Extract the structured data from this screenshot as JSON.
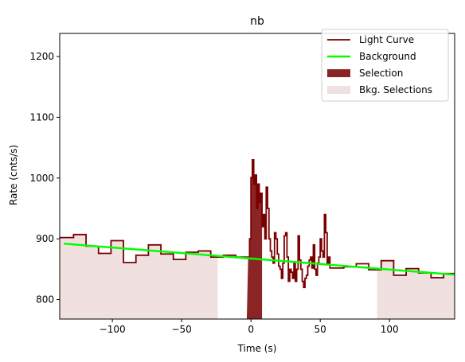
{
  "chart_data": {
    "type": "line",
    "title": "nb",
    "xlabel": "Time (s)",
    "ylabel": "Rate (cnts/s)",
    "xlim": [
      -138,
      147
    ],
    "ylim": [
      768,
      1238
    ],
    "xticks": [
      -100,
      -50,
      0,
      50,
      100
    ],
    "yticks": [
      800,
      900,
      1000,
      1100,
      1200
    ],
    "grid": false,
    "legend_position": "top-right",
    "colors": {
      "light_curve": "#7b0000",
      "background": "#00ff00",
      "selection": "#8b2525",
      "bkg_selection": "#f0e0e0"
    },
    "legend": [
      {
        "label": "Light Curve",
        "kind": "line",
        "color": "#7b0000"
      },
      {
        "label": "Background",
        "kind": "line",
        "color": "#00ff00"
      },
      {
        "label": "Selection",
        "kind": "patch",
        "color": "#8b2525"
      },
      {
        "label": "Bkg. Selections",
        "kind": "patch",
        "color": "#f0e0e0"
      }
    ],
    "background_fit": {
      "x": [
        -135,
        147
      ],
      "y": [
        892,
        841
      ]
    },
    "bkg_selections": [
      [
        -138,
        -24
      ],
      [
        91,
        147
      ]
    ],
    "selection": [
      -3,
      8
    ],
    "light_curve_coarse": {
      "edges": [
        -138,
        -128,
        -119,
        -110,
        -101,
        -92,
        -83,
        -74,
        -65,
        -56,
        -47,
        -38,
        -29,
        -20,
        -11,
        -2
      ],
      "values": [
        902,
        907,
        888,
        876,
        897,
        861,
        873,
        890,
        875,
        866,
        878,
        880,
        870,
        873,
        870
      ]
    },
    "light_curve_fine": {
      "edges": [
        -2,
        -1,
        0,
        1,
        2,
        3,
        4,
        5,
        6,
        7,
        8,
        9,
        10,
        11,
        12,
        13,
        14,
        15,
        16,
        17,
        18,
        19,
        20,
        21,
        22,
        23,
        24,
        25,
        26,
        27,
        28,
        29,
        30,
        31,
        32,
        33,
        34,
        35,
        36,
        37,
        38,
        39,
        40,
        41,
        42,
        43,
        44,
        45,
        46,
        47,
        48,
        49,
        50,
        51,
        52,
        53,
        54,
        55,
        56,
        57,
        58
      ],
      "values": [
        870,
        900,
        1001,
        1030,
        990,
        1005,
        950,
        990,
        960,
        975,
        920,
        940,
        900,
        985,
        950,
        900,
        880,
        870,
        860,
        910,
        900,
        875,
        855,
        850,
        835,
        860,
        905,
        910,
        870,
        830,
        850,
        845,
        835,
        860,
        830,
        850,
        905,
        865,
        850,
        830,
        820,
        835,
        840,
        855,
        865,
        870,
        852,
        890,
        850,
        840,
        860,
        870,
        900,
        880,
        870,
        940,
        910,
        860,
        870,
        852
      ]
    },
    "light_curve_tail": {
      "edges": [
        58,
        67,
        76,
        85,
        94,
        103,
        112,
        121,
        130,
        139,
        147
      ],
      "values": [
        852,
        854,
        859,
        849,
        864,
        840,
        851,
        844,
        836,
        843
      ]
    }
  }
}
